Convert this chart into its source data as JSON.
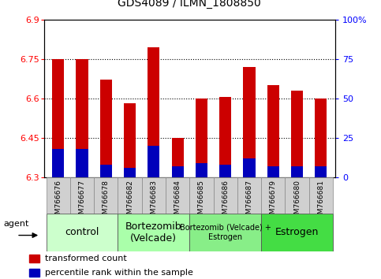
{
  "title": "GDS4089 / ILMN_1808850",
  "samples": [
    "GSM766676",
    "GSM766677",
    "GSM766678",
    "GSM766682",
    "GSM766683",
    "GSM766684",
    "GSM766685",
    "GSM766686",
    "GSM766687",
    "GSM766679",
    "GSM766680",
    "GSM766681"
  ],
  "red_values": [
    6.75,
    6.75,
    6.67,
    6.58,
    6.795,
    6.45,
    6.6,
    6.605,
    6.72,
    6.65,
    6.63,
    6.6
  ],
  "blue_percentiles": [
    18,
    18,
    8,
    6,
    20,
    7,
    9,
    8,
    12,
    7,
    7,
    7
  ],
  "y_min": 6.3,
  "y_max": 6.9,
  "y_ticks": [
    6.3,
    6.45,
    6.6,
    6.75,
    6.9
  ],
  "y_tick_labels": [
    "6.3",
    "6.45",
    "6.6",
    "6.75",
    "6.9"
  ],
  "y2_ticks": [
    0,
    25,
    50,
    75,
    100
  ],
  "y2_tick_labels": [
    "0",
    "25",
    "50",
    "75",
    "100%"
  ],
  "group_colors": [
    "#ccffcc",
    "#aaffaa",
    "#88ee88",
    "#44dd44"
  ],
  "group_labels": [
    "control",
    "Bortezomib\n(Velcade)",
    "Bortezomib (Velcade) +\nEstrogen",
    "Estrogen"
  ],
  "group_ranges": [
    [
      0,
      3
    ],
    [
      3,
      6
    ],
    [
      6,
      9
    ],
    [
      9,
      12
    ]
  ],
  "group_fontsizes": [
    9,
    9,
    7,
    9
  ],
  "bar_width": 0.5,
  "red_color": "#cc0000",
  "blue_color": "#0000bb",
  "legend_red": "transformed count",
  "legend_blue": "percentile rank within the sample",
  "agent_label": "agent"
}
